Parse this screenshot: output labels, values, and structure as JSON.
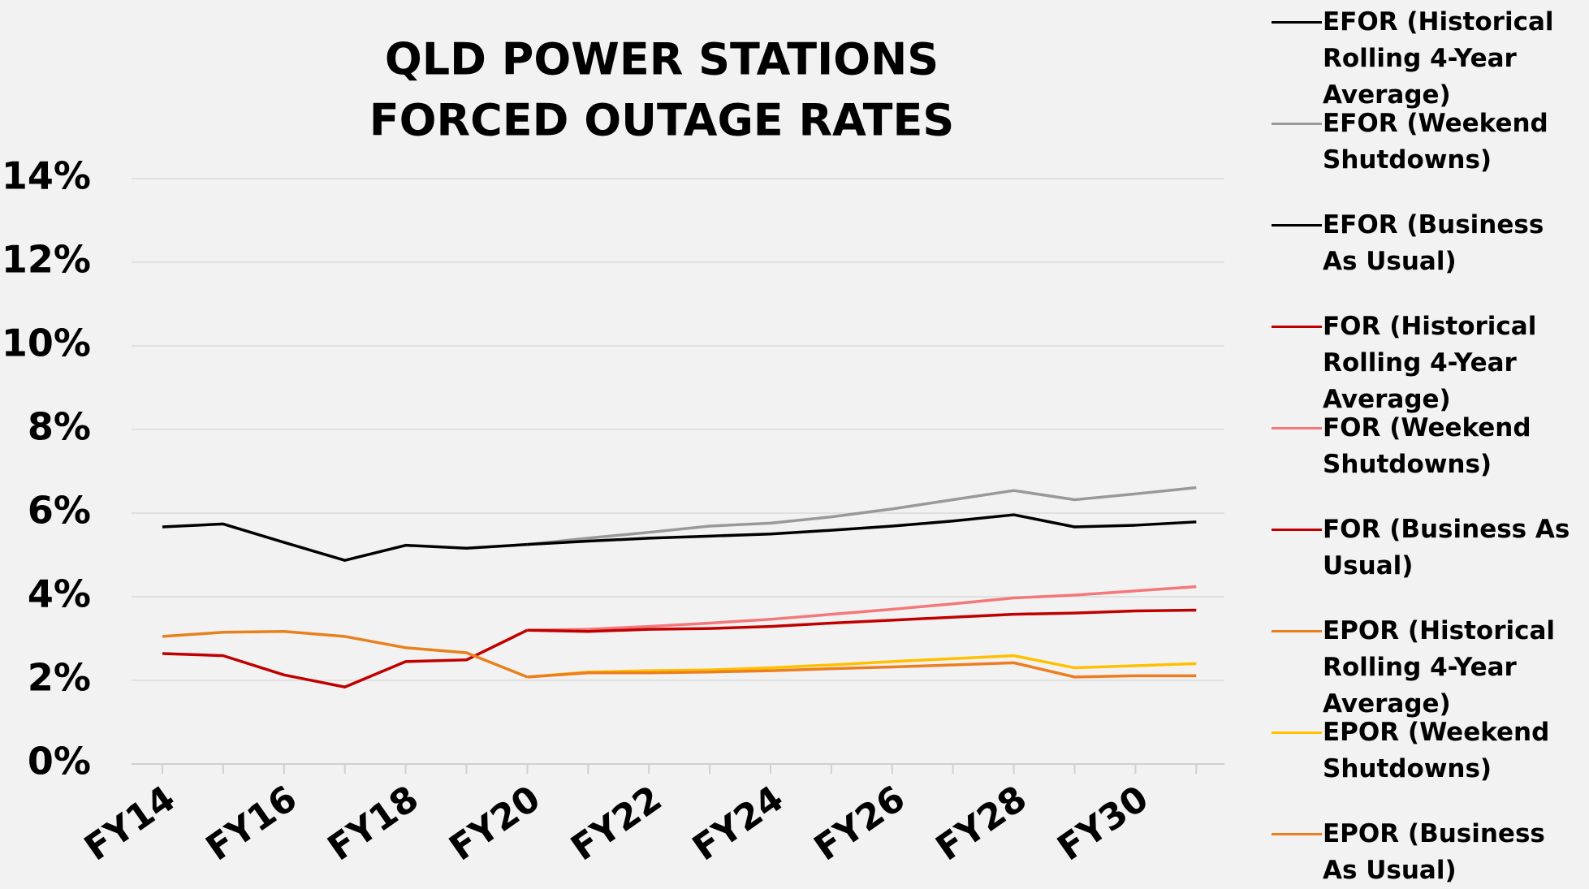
{
  "chart_data": {
    "type": "line",
    "title": "QLD POWER STATIONS",
    "subtitle": "FORCED OUTAGE RATES",
    "categories": [
      "FY14",
      null,
      "FY16",
      null,
      "FY18",
      null,
      "FY20",
      null,
      "FY22",
      null,
      "FY24",
      null,
      "FY26",
      null,
      "FY28",
      null,
      "FY30",
      null
    ],
    "series": [
      {
        "name": "EFOR (Historical Rolling 4-Year Average)",
        "color": "#000000",
        "values": [
          5.67,
          5.74,
          5.3,
          4.87,
          5.23,
          5.16,
          5.25,
          null,
          null,
          null,
          null,
          null,
          null,
          null,
          null,
          null,
          null,
          null
        ]
      },
      {
        "name": "EFOR (Weekend Shutdowns)",
        "color": "#999999",
        "values": [
          null,
          null,
          null,
          null,
          null,
          null,
          5.25,
          5.4,
          5.54,
          5.69,
          5.76,
          5.91,
          6.1,
          6.32,
          6.54,
          6.32,
          6.46,
          6.61
        ]
      },
      {
        "name": "EFOR (Business As Usual)",
        "color": "#000000",
        "values": [
          null,
          null,
          null,
          null,
          null,
          null,
          5.25,
          5.33,
          5.4,
          5.45,
          5.5,
          5.59,
          5.69,
          5.81,
          5.96,
          5.67,
          5.71,
          5.79
        ]
      },
      {
        "name": "FOR (Historical Rolling 4-Year Average)",
        "color": "#c00000",
        "values": [
          2.64,
          2.59,
          2.13,
          1.84,
          2.45,
          2.49,
          3.2,
          null,
          null,
          null,
          null,
          null,
          null,
          null,
          null,
          null,
          null,
          null
        ]
      },
      {
        "name": "FOR (Weekend Shutdowns)",
        "color": "#f4777a",
        "values": [
          null,
          null,
          null,
          null,
          null,
          null,
          3.2,
          3.22,
          3.29,
          3.37,
          3.46,
          3.58,
          3.7,
          3.83,
          3.97,
          4.04,
          4.14,
          4.24
        ]
      },
      {
        "name": "FOR (Business As Usual)",
        "color": "#c00000",
        "values": [
          null,
          null,
          null,
          null,
          null,
          null,
          3.2,
          3.17,
          3.22,
          3.24,
          3.29,
          3.37,
          3.44,
          3.51,
          3.58,
          3.61,
          3.66,
          3.68
        ]
      },
      {
        "name": "EPOR (Historical Rolling 4-Year Average)",
        "color": "#e8801c",
        "values": [
          3.05,
          3.15,
          3.17,
          3.05,
          2.78,
          2.66,
          2.08,
          null,
          null,
          null,
          null,
          null,
          null,
          null,
          null,
          null,
          null,
          null
        ]
      },
      {
        "name": "EPOR (Weekend Shutdowns)",
        "color": "#ffc000",
        "values": [
          null,
          null,
          null,
          null,
          null,
          null,
          2.08,
          2.2,
          2.23,
          2.25,
          2.3,
          2.37,
          2.45,
          2.52,
          2.59,
          2.3,
          2.35,
          2.4
        ]
      },
      {
        "name": "EPOR (Business As Usual)",
        "color": "#ed7d1f",
        "values": [
          null,
          null,
          null,
          null,
          null,
          null,
          2.08,
          2.18,
          2.18,
          2.2,
          2.23,
          2.28,
          2.32,
          2.37,
          2.42,
          2.08,
          2.11,
          2.11
        ]
      }
    ],
    "ylim": [
      0,
      14
    ],
    "yticks": [
      {
        "value": 0,
        "label": "0%"
      },
      {
        "value": 2,
        "label": "2%"
      },
      {
        "value": 4,
        "label": "4%"
      },
      {
        "value": 6,
        "label": "6%"
      },
      {
        "value": 8,
        "label": "8%"
      },
      {
        "value": 10,
        "label": "10%"
      },
      {
        "value": 12,
        "label": "12%"
      },
      {
        "value": 14,
        "label": "14%"
      }
    ],
    "grid": true,
    "legend": "right"
  }
}
